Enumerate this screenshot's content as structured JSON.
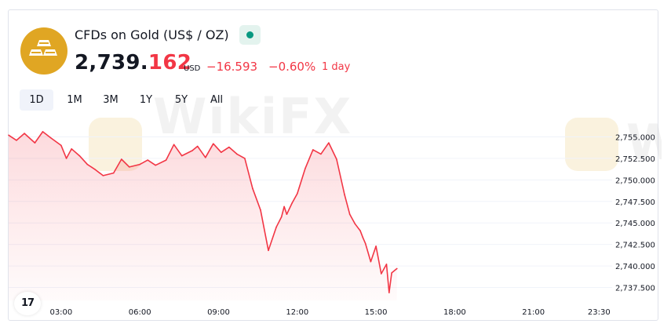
{
  "header": {
    "title": "CFDs on Gold (US$ / OZ)",
    "price_int": "2,739.",
    "price_dec": "162",
    "currency": "USD",
    "change": "−16.593",
    "change_pct": "−0.60%",
    "period": "1 day",
    "status_color": "#089981"
  },
  "ranges": [
    {
      "label": "1D",
      "active": true
    },
    {
      "label": "1M",
      "active": false
    },
    {
      "label": "3M",
      "active": false
    },
    {
      "label": "1Y",
      "active": false
    },
    {
      "label": "5Y",
      "active": false
    },
    {
      "label": "All",
      "active": false
    }
  ],
  "watermark": {
    "text": "WikiFX",
    "text_partial": "W"
  },
  "branding": {
    "tv_logo": "17"
  },
  "colors": {
    "line": "#f23645",
    "accent": "#e0a623",
    "grid": "#f0f3fa"
  },
  "chart_data": {
    "type": "area",
    "title": "",
    "xlabel": "",
    "ylabel": "",
    "x_ticks": [
      "03:00",
      "06:00",
      "09:00",
      "12:00",
      "15:00",
      "18:00",
      "21:00",
      "23:30"
    ],
    "y_ticks": [
      "2,755.000",
      "2,752.500",
      "2,750.000",
      "2,747.500",
      "2,745.000",
      "2,742.500",
      "2,740.000",
      "2,737.500"
    ],
    "ylim": [
      2736.0,
      2756.5
    ],
    "x_range_hours": [
      1.0,
      24.0
    ],
    "grid": true,
    "series": [
      {
        "x": [
          1.0,
          1.3,
          1.6,
          2.0,
          2.3,
          2.6,
          3.0,
          3.2,
          3.4,
          3.7,
          4.0,
          4.3,
          4.6,
          5.0,
          5.3,
          5.6,
          6.0,
          6.3,
          6.6,
          7.0,
          7.3,
          7.6,
          8.0,
          8.2,
          8.5,
          8.8,
          9.1,
          9.4,
          9.7,
          10.0,
          10.3,
          10.6,
          10.9,
          11.2,
          11.4,
          11.5,
          11.6,
          11.8,
          12.0,
          12.3,
          12.6,
          12.9,
          13.2,
          13.5,
          13.8,
          14.0,
          14.2,
          14.4,
          14.5,
          14.6,
          14.8,
          15.0,
          15.2,
          15.4,
          15.5,
          15.6,
          15.8
        ],
        "y": [
          2755.2,
          2754.6,
          2755.4,
          2754.3,
          2755.6,
          2754.9,
          2754.0,
          2752.5,
          2753.6,
          2752.8,
          2751.8,
          2751.2,
          2750.5,
          2750.8,
          2752.4,
          2751.5,
          2751.8,
          2752.3,
          2751.7,
          2752.3,
          2754.1,
          2752.8,
          2753.4,
          2753.9,
          2752.6,
          2754.2,
          2753.2,
          2753.8,
          2753.0,
          2752.5,
          2749.0,
          2746.5,
          2741.8,
          2744.5,
          2745.7,
          2746.9,
          2746.0,
          2747.3,
          2748.4,
          2751.3,
          2753.5,
          2753.0,
          2754.3,
          2752.4,
          2748.3,
          2746.0,
          2744.9,
          2744.1,
          2743.3,
          2742.6,
          2740.5,
          2742.3,
          2739.1,
          2740.2,
          2736.9,
          2739.2,
          2739.7
        ]
      }
    ]
  }
}
